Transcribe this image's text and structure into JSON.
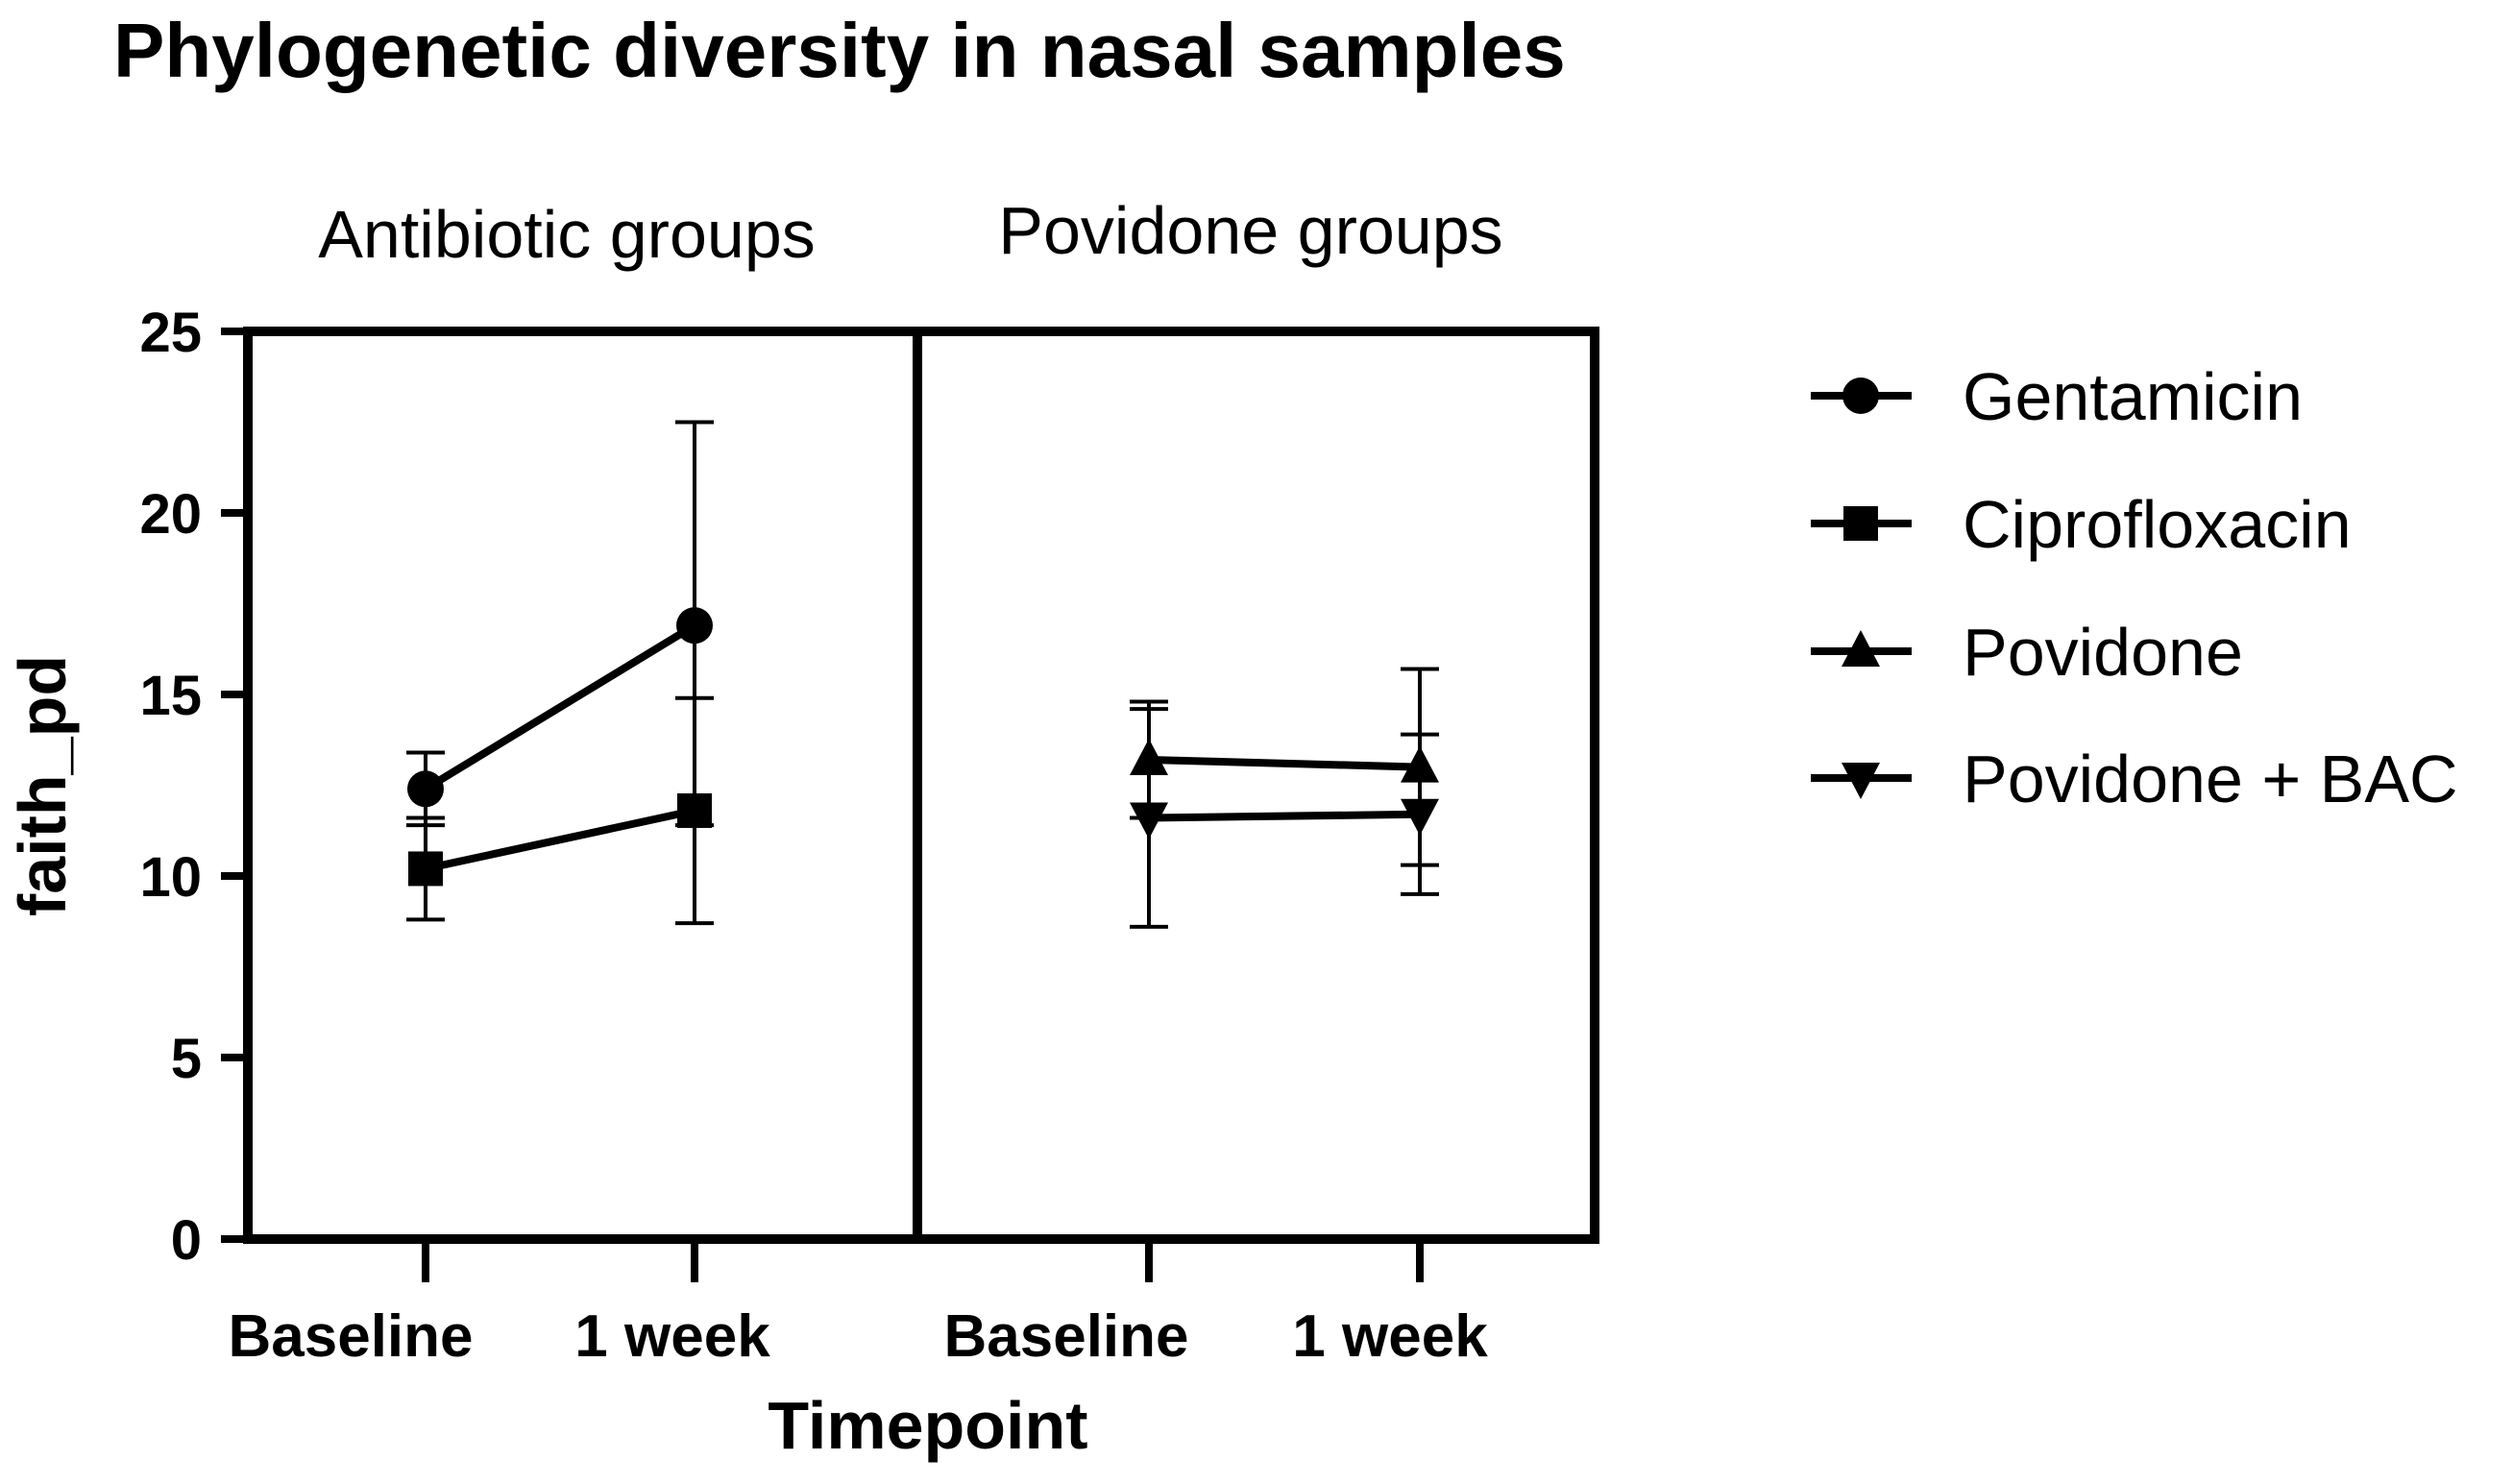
{
  "chart_data": {
    "type": "line",
    "title": "Phylogenetic diversity in nasal samples",
    "ylabel": "faith_pd",
    "xlabel": "Timepoint",
    "ylim": [
      0,
      25
    ],
    "yticks": [
      0,
      5,
      10,
      15,
      20,
      25
    ],
    "categories": [
      "Baseline",
      "1 week"
    ],
    "panels": [
      {
        "label": "Antibiotic groups",
        "series": [
          {
            "name": "Gentamicin",
            "marker": "circle",
            "values": [
              12.4,
              16.9
            ],
            "err_low": [
              11.4,
              11.4
            ],
            "err_high": [
              13.4,
              22.5
            ]
          },
          {
            "name": "Ciprofloxacin",
            "marker": "square",
            "values": [
              10.2,
              11.8
            ],
            "err_low": [
              8.8,
              8.7
            ],
            "err_high": [
              11.6,
              14.9
            ]
          }
        ]
      },
      {
        "label": "Povidone groups",
        "series": [
          {
            "name": "Povidone",
            "marker": "triangle-up",
            "values": [
              13.2,
              13.0
            ],
            "err_low": [
              11.6,
              10.3
            ],
            "err_high": [
              14.8,
              15.7
            ]
          },
          {
            "name": "Povidone + BAC",
            "marker": "triangle-down",
            "values": [
              11.6,
              11.7
            ],
            "err_low": [
              8.6,
              9.5
            ],
            "err_high": [
              14.6,
              13.9
            ]
          }
        ]
      }
    ],
    "legend": {
      "position": "right",
      "entries": [
        {
          "name": "Gentamicin",
          "marker": "circle"
        },
        {
          "name": "Ciprofloxacin",
          "marker": "square"
        },
        {
          "name": "Povidone",
          "marker": "triangle-up"
        },
        {
          "name": "Povidone + BAC",
          "marker": "triangle-down"
        }
      ]
    },
    "grid": false
  }
}
